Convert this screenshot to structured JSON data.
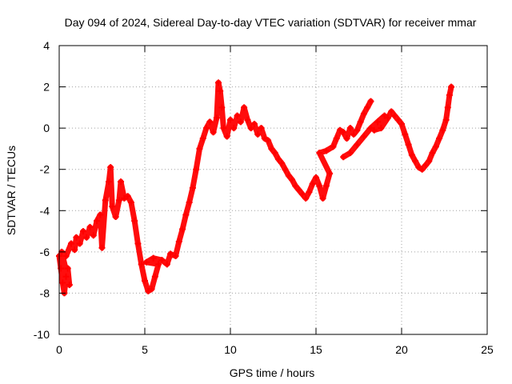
{
  "chart_data": {
    "type": "scatter",
    "title": "Day 094 of 2024, Sidereal Day-to-day VTEC variation (SDTVAR) for receiver mmar",
    "xlabel": "GPS time / hours",
    "ylabel": "SDTVAR / TECUs",
    "xlim": [
      0,
      25
    ],
    "ylim": [
      -10,
      4
    ],
    "x_ticks": [
      0,
      5,
      10,
      15,
      20,
      25
    ],
    "y_ticks": [
      -10,
      -8,
      -6,
      -4,
      -2,
      0,
      2,
      4
    ],
    "grid": true,
    "marker": "+",
    "series": [
      {
        "name": "SDTVAR",
        "color": "#ff0000",
        "points": [
          [
            0.0,
            -6.2
          ],
          [
            0.1,
            -6.8
          ],
          [
            0.2,
            -7.5
          ],
          [
            0.3,
            -8.0
          ],
          [
            0.4,
            -7.2
          ],
          [
            0.5,
            -6.8
          ],
          [
            0.6,
            -7.6
          ],
          [
            0.15,
            -6.0
          ],
          [
            0.4,
            -6.2
          ],
          [
            0.7,
            -5.6
          ],
          [
            0.9,
            -5.9
          ],
          [
            1.0,
            -5.3
          ],
          [
            1.2,
            -5.6
          ],
          [
            1.4,
            -5.0
          ],
          [
            1.6,
            -5.3
          ],
          [
            1.8,
            -4.8
          ],
          [
            2.0,
            -5.2
          ],
          [
            2.2,
            -4.5
          ],
          [
            2.4,
            -4.2
          ],
          [
            2.5,
            -5.8
          ],
          [
            2.7,
            -3.5
          ],
          [
            2.9,
            -2.6
          ],
          [
            3.0,
            -1.9
          ],
          [
            3.1,
            -3.8
          ],
          [
            3.3,
            -4.3
          ],
          [
            3.5,
            -3.5
          ],
          [
            3.6,
            -2.6
          ],
          [
            3.8,
            -3.4
          ],
          [
            4.0,
            -3.3
          ],
          [
            4.2,
            -3.6
          ],
          [
            4.4,
            -4.5
          ],
          [
            4.6,
            -5.6
          ],
          [
            4.8,
            -6.6
          ],
          [
            5.0,
            -7.4
          ],
          [
            5.2,
            -7.9
          ],
          [
            5.4,
            -7.8
          ],
          [
            5.6,
            -7.2
          ],
          [
            5.8,
            -6.6
          ],
          [
            5.1,
            -6.5
          ],
          [
            5.5,
            -6.3
          ],
          [
            6.0,
            -6.4
          ],
          [
            6.3,
            -6.6
          ],
          [
            6.5,
            -6.1
          ],
          [
            6.8,
            -6.2
          ],
          [
            7.0,
            -5.5
          ],
          [
            7.2,
            -4.9
          ],
          [
            7.4,
            -4.2
          ],
          [
            7.6,
            -3.6
          ],
          [
            7.8,
            -2.9
          ],
          [
            8.0,
            -2.0
          ],
          [
            8.2,
            -1.0
          ],
          [
            8.4,
            -0.5
          ],
          [
            8.6,
            0.0
          ],
          [
            8.8,
            0.3
          ],
          [
            9.0,
            -0.2
          ],
          [
            9.2,
            0.5
          ],
          [
            9.3,
            2.2
          ],
          [
            9.4,
            1.8
          ],
          [
            9.5,
            1.0
          ],
          [
            9.6,
            0.0
          ],
          [
            9.8,
            -0.4
          ],
          [
            10.0,
            0.4
          ],
          [
            10.2,
            0.0
          ],
          [
            10.4,
            0.6
          ],
          [
            10.6,
            0.3
          ],
          [
            10.8,
            1.0
          ],
          [
            11.0,
            0.4
          ],
          [
            11.2,
            0.0
          ],
          [
            11.4,
            0.2
          ],
          [
            11.6,
            -0.3
          ],
          [
            11.8,
            0.0
          ],
          [
            12.0,
            -0.5
          ],
          [
            12.2,
            -0.6
          ],
          [
            12.4,
            -1.0
          ],
          [
            12.6,
            -1.2
          ],
          [
            12.8,
            -1.5
          ],
          [
            13.0,
            -1.7
          ],
          [
            13.2,
            -2.0
          ],
          [
            13.4,
            -2.3
          ],
          [
            13.6,
            -2.5
          ],
          [
            13.8,
            -2.8
          ],
          [
            14.0,
            -3.0
          ],
          [
            14.2,
            -3.2
          ],
          [
            14.4,
            -3.4
          ],
          [
            14.6,
            -3.1
          ],
          [
            14.8,
            -2.7
          ],
          [
            15.0,
            -2.4
          ],
          [
            15.2,
            -2.8
          ],
          [
            15.4,
            -3.4
          ],
          [
            15.6,
            -2.8
          ],
          [
            15.8,
            -2.2
          ],
          [
            15.2,
            -1.2
          ],
          [
            15.6,
            -1.1
          ],
          [
            16.0,
            -0.9
          ],
          [
            16.2,
            -0.5
          ],
          [
            16.4,
            -0.1
          ],
          [
            16.6,
            -0.2
          ],
          [
            16.8,
            -0.5
          ],
          [
            17.0,
            0.0
          ],
          [
            17.2,
            -0.3
          ],
          [
            17.4,
            -0.1
          ],
          [
            17.6,
            0.3
          ],
          [
            17.8,
            0.7
          ],
          [
            18.0,
            1.0
          ],
          [
            18.2,
            1.3
          ],
          [
            16.6,
            -1.4
          ],
          [
            17.0,
            -1.2
          ],
          [
            17.4,
            -0.8
          ],
          [
            17.8,
            -0.4
          ],
          [
            18.2,
            0.0
          ],
          [
            18.6,
            0.3
          ],
          [
            19.0,
            0.6
          ],
          [
            18.4,
            -0.1
          ],
          [
            18.8,
            0.0
          ],
          [
            19.2,
            0.5
          ],
          [
            19.4,
            0.8
          ],
          [
            19.6,
            0.6
          ],
          [
            19.8,
            0.4
          ],
          [
            20.0,
            0.2
          ],
          [
            20.2,
            -0.3
          ],
          [
            20.4,
            -0.8
          ],
          [
            20.6,
            -1.3
          ],
          [
            20.8,
            -1.6
          ],
          [
            21.0,
            -1.9
          ],
          [
            21.2,
            -2.0
          ],
          [
            21.4,
            -1.8
          ],
          [
            21.6,
            -1.6
          ],
          [
            21.8,
            -1.2
          ],
          [
            22.0,
            -0.9
          ],
          [
            22.2,
            -0.5
          ],
          [
            22.4,
            -0.1
          ],
          [
            22.6,
            0.4
          ],
          [
            22.7,
            1.0
          ],
          [
            22.8,
            1.6
          ],
          [
            22.9,
            2.0
          ]
        ]
      }
    ]
  }
}
